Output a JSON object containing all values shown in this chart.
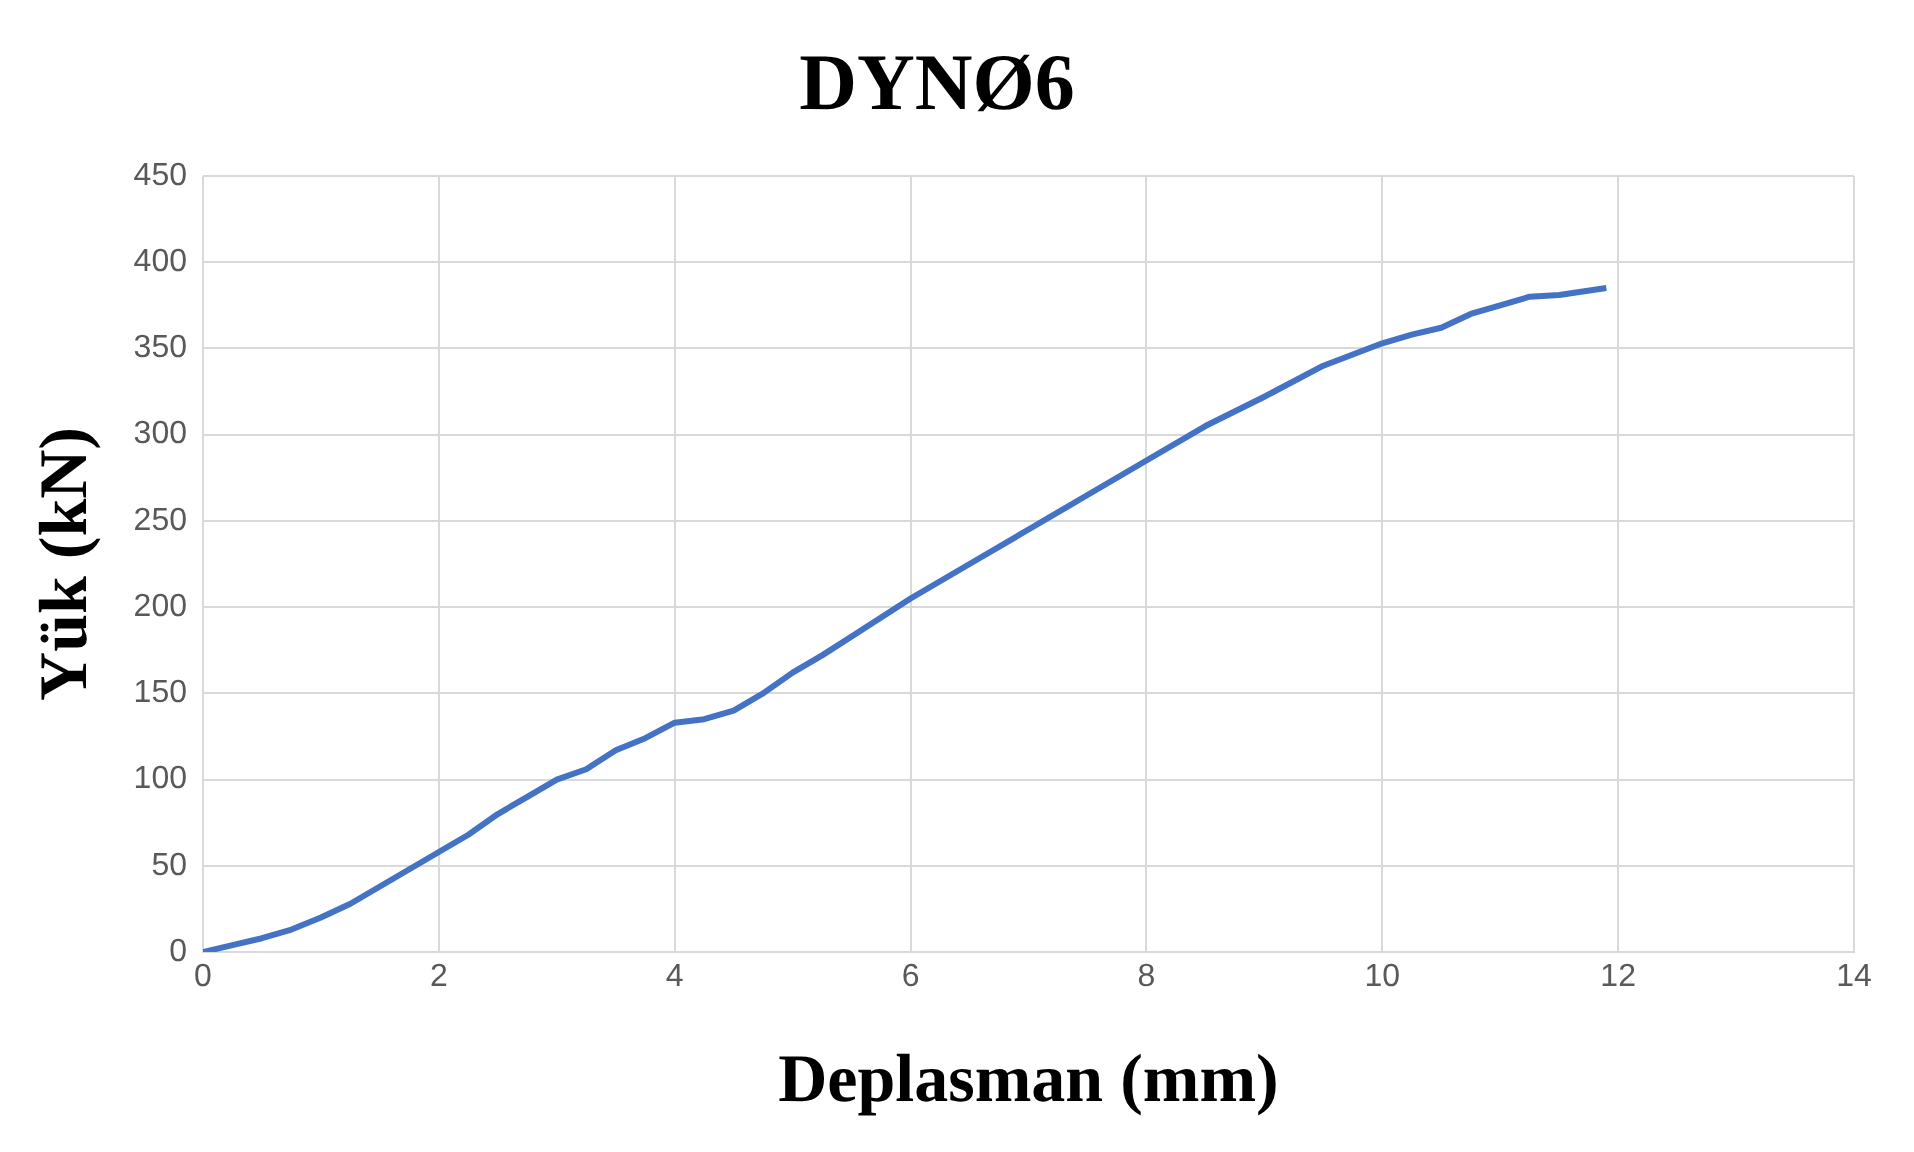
{
  "chart_data": {
    "type": "line",
    "title": "DYNØ6",
    "xlabel": "Deplasman (mm)",
    "ylabel": "Yük (kN)",
    "x": [
      0,
      0.25,
      0.5,
      0.75,
      1,
      1.25,
      1.5,
      1.75,
      2,
      2.25,
      2.5,
      2.75,
      3,
      3.25,
      3.5,
      3.75,
      4,
      4.25,
      4.5,
      4.75,
      5,
      5.25,
      5.5,
      5.75,
      6,
      6.5,
      7,
      7.5,
      8,
      8.5,
      9,
      9.5,
      10,
      10.25,
      10.5,
      10.75,
      11,
      11.25,
      11.5,
      11.9
    ],
    "series": [
      {
        "color": "#4472c4",
        "values": [
          0,
          4,
          8,
          13,
          20,
          28,
          38,
          48,
          58,
          68,
          80,
          90,
          100,
          106,
          117,
          124,
          133,
          135,
          140,
          150,
          162,
          172,
          183,
          194,
          205,
          225,
          245,
          265,
          285,
          305,
          322,
          340,
          353,
          358,
          362,
          370,
          375,
          380,
          381,
          385
        ]
      }
    ],
    "xlim": [
      0,
      14
    ],
    "xticks": [
      0,
      2,
      4,
      6,
      8,
      10,
      12,
      14
    ],
    "ylim": [
      0,
      450
    ],
    "yticks": [
      0,
      50,
      100,
      150,
      200,
      250,
      300,
      350,
      400,
      450
    ],
    "grid": true,
    "legend": false,
    "marker": "none",
    "line_style": "solid"
  }
}
